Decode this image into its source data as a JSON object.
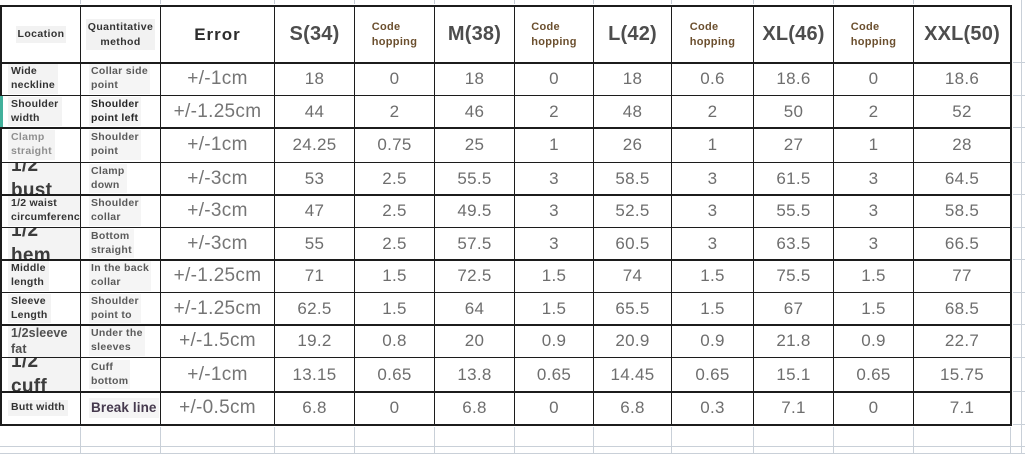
{
  "sheet": {
    "columns": [
      {
        "label": "Location",
        "kind": "plain"
      },
      {
        "label": "Quantitative\nmethod",
        "kind": "plain"
      },
      {
        "label": "Error",
        "kind": "error"
      },
      {
        "label": "S(34)",
        "kind": "size"
      },
      {
        "label": "Code\nhopping",
        "kind": "code"
      },
      {
        "label": "M(38)",
        "kind": "size"
      },
      {
        "label": "Code\nhopping",
        "kind": "code"
      },
      {
        "label": "L(42)",
        "kind": "size"
      },
      {
        "label": "Code\nhopping",
        "kind": "code"
      },
      {
        "label": "XL(46)",
        "kind": "size"
      },
      {
        "label": "Code\nhopping",
        "kind": "code"
      },
      {
        "label": "XXL(50)",
        "kind": "size"
      }
    ],
    "rows": [
      {
        "location": "Wide\nneckline",
        "loc_variant": "sm",
        "method": "Collar side\npoint",
        "method_variant": "normal",
        "error": "+/-1cm",
        "values": [
          "18",
          "0",
          "18",
          "0",
          "18",
          "0.6",
          "18.6",
          "0",
          "18.6"
        ],
        "marker": false
      },
      {
        "location": "Shoulder\nwidth",
        "loc_variant": "sm",
        "method": "Shoulder\npoint left",
        "method_variant": "dark",
        "error": "+/-1.25cm",
        "values": [
          "44",
          "2",
          "46",
          "2",
          "48",
          "2",
          "50",
          "2",
          "52"
        ],
        "marker": true
      },
      {
        "location": "Clamp\nstraight",
        "loc_variant": "gray",
        "method": "Shoulder\npoint",
        "method_variant": "normal",
        "error": "+/-1cm",
        "values": [
          "24.25",
          "0.75",
          "25",
          "1",
          "26",
          "1",
          "27",
          "1",
          "28"
        ],
        "marker": false
      },
      {
        "location": "1/2 bust",
        "loc_variant": "lg",
        "method": "Clamp\ndown",
        "method_variant": "normal",
        "error": "+/-3cm",
        "values": [
          "53",
          "2.5",
          "55.5",
          "3",
          "58.5",
          "3",
          "61.5",
          "3",
          "64.5"
        ],
        "marker": false
      },
      {
        "location": "1/2 waist\ncircumference",
        "loc_variant": "sm",
        "method": "Shoulder\ncollar",
        "method_variant": "normal",
        "error": "+/-3cm",
        "values": [
          "47",
          "2.5",
          "49.5",
          "3",
          "52.5",
          "3",
          "55.5",
          "3",
          "58.5"
        ],
        "marker": false
      },
      {
        "location": "1/2 hem",
        "loc_variant": "lg",
        "method": "Bottom\nstraight",
        "method_variant": "normal",
        "error": "+/-3cm",
        "values": [
          "55",
          "2.5",
          "57.5",
          "3",
          "60.5",
          "3",
          "63.5",
          "3",
          "66.5"
        ],
        "marker": false
      },
      {
        "location": "Middle\nlength",
        "loc_variant": "sm",
        "method": "In the back\ncollar",
        "method_variant": "normal",
        "error": "+/-1.25cm",
        "values": [
          "71",
          "1.5",
          "72.5",
          "1.5",
          "74",
          "1.5",
          "75.5",
          "1.5",
          "77"
        ],
        "marker": false
      },
      {
        "location": "Sleeve\nLength",
        "loc_variant": "sm",
        "method": "Shoulder\npoint to",
        "method_variant": "normal",
        "error": "+/-1.25cm",
        "values": [
          "62.5",
          "1.5",
          "64",
          "1.5",
          "65.5",
          "1.5",
          "67",
          "1.5",
          "68.5"
        ],
        "marker": false
      },
      {
        "location": "1/2sleeve fat",
        "loc_variant": "md",
        "method": "Under the\nsleeves",
        "method_variant": "normal",
        "error": "+/-1.5cm",
        "values": [
          "19.2",
          "0.8",
          "20",
          "0.9",
          "20.9",
          "0.9",
          "21.8",
          "0.9",
          "22.7"
        ],
        "marker": false
      },
      {
        "location": "1/2 cuff",
        "loc_variant": "lg",
        "method": "Cuff\nbottom",
        "method_variant": "normal",
        "error": "+/-1cm",
        "values": [
          "13.15",
          "0.65",
          "13.8",
          "0.65",
          "14.45",
          "0.65",
          "15.1",
          "0.65",
          "15.75"
        ],
        "marker": false
      },
      {
        "location": "Butt width",
        "loc_variant": "sm",
        "method": "Break line",
        "method_variant": "accent",
        "error": "+/-0.5cm",
        "values": [
          "6.8",
          "0",
          "6.8",
          "0",
          "6.8",
          "0.3",
          "7.1",
          "0",
          "7.1"
        ],
        "marker": false
      }
    ],
    "colors": {
      "table_border": "#1c1c1c",
      "grid_light": "#c9d0d8",
      "code_header_text": "#6b4f2e",
      "size_header_text": "#4d4d4d",
      "value_text": "#6e6e6e",
      "label_dark": "#333333",
      "label_gray": "#8f8f8f",
      "break_line_text": "#463a4e",
      "row_marker_teal": "#41b09b"
    }
  }
}
